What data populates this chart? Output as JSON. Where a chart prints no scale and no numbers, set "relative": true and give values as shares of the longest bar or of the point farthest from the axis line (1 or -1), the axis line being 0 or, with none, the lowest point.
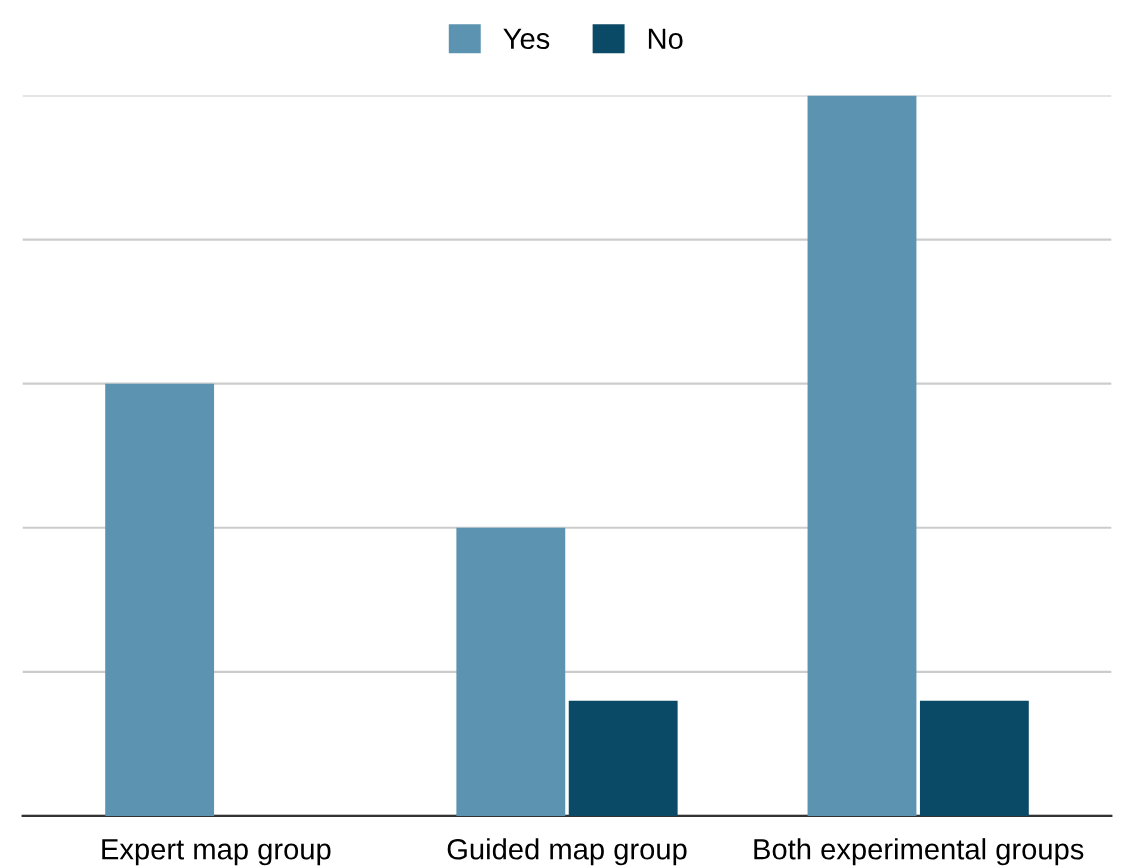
{
  "chart_data": {
    "type": "bar",
    "relative": true,
    "categories": [
      "Expert map group",
      "Guided map group",
      "Both experimental groups"
    ],
    "series": [
      {
        "name": "Yes",
        "color": "#5b93b0",
        "values": [
          0.6,
          0.4,
          1.0
        ]
      },
      {
        "name": "No",
        "color": "#0b4a66",
        "values": [
          0,
          0.16,
          0.16
        ]
      }
    ],
    "grid": "y",
    "legend": "top"
  }
}
